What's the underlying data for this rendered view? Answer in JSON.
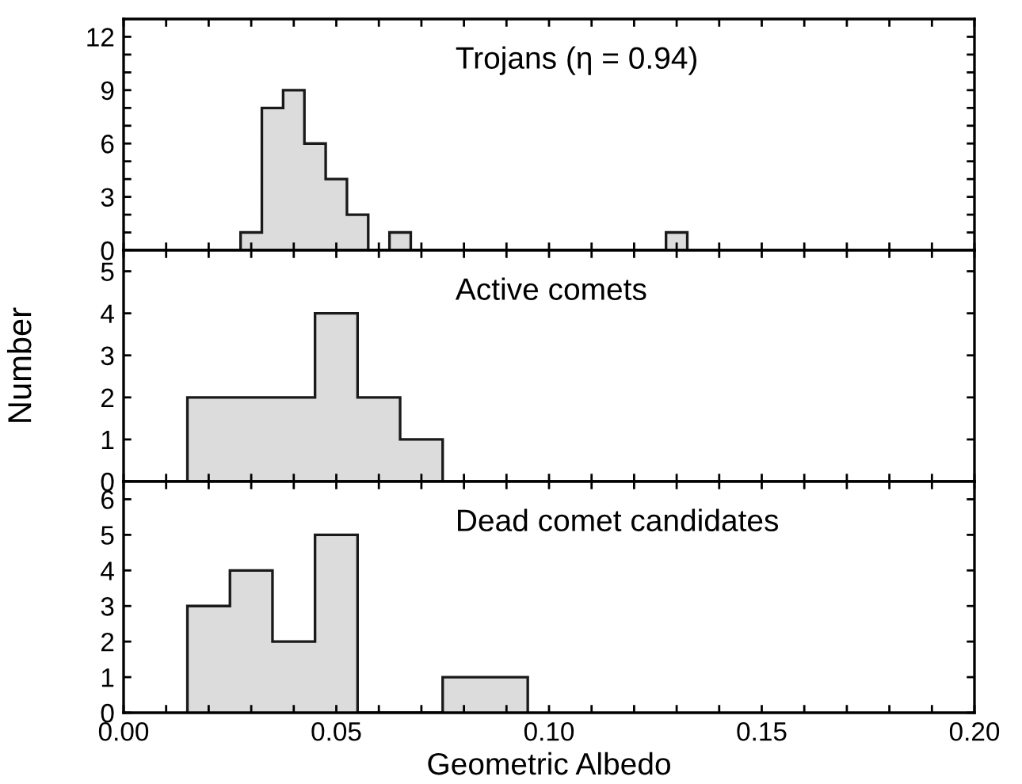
{
  "chart_data": [
    {
      "type": "histogram",
      "annotations": [
        "Trojans (η = 0.94)"
      ],
      "bins": [
        0.0275,
        0.0325,
        0.0375,
        0.0425,
        0.0475,
        0.0525,
        0.0575,
        0.0625,
        0.0675,
        0.0725,
        0.0775,
        0.0825,
        0.0875,
        0.0925,
        0.0975,
        0.1025,
        0.1075,
        0.1125,
        0.1175,
        0.1225,
        0.1275,
        0.1325
      ],
      "values": [
        1,
        8,
        9,
        6,
        4,
        2,
        0,
        1,
        0,
        0,
        0,
        0,
        0,
        0,
        0,
        0,
        0,
        0,
        0,
        0,
        1
      ],
      "color": "#dcdcdc",
      "xlim": [
        0,
        0.2
      ],
      "xticks": [
        {
          "value": 0,
          "label": null
        },
        {
          "value": 0.01,
          "label": null
        },
        {
          "value": 0.02,
          "label": null
        },
        {
          "value": 0.03,
          "label": null
        },
        {
          "value": 0.04,
          "label": null
        },
        {
          "value": 0.05,
          "label": null
        },
        {
          "value": 0.06,
          "label": null
        },
        {
          "value": 0.07,
          "label": null
        },
        {
          "value": 0.08,
          "label": null
        },
        {
          "value": 0.09,
          "label": null
        },
        {
          "value": 0.1,
          "label": null
        },
        {
          "value": 0.11,
          "label": null
        },
        {
          "value": 0.12,
          "label": null
        },
        {
          "value": 0.13,
          "label": null
        },
        {
          "value": 0.14,
          "label": null
        },
        {
          "value": 0.15,
          "label": null
        },
        {
          "value": 0.16,
          "label": null
        },
        {
          "value": 0.17,
          "label": null
        },
        {
          "value": 0.18,
          "label": null
        },
        {
          "value": 0.19,
          "label": null
        },
        {
          "value": 0.2,
          "label": null
        }
      ],
      "ylim": [
        0,
        13
      ],
      "yticks": [
        0,
        {
          "value": 1,
          "label": null
        },
        {
          "value": 2,
          "label": null
        },
        3,
        {
          "value": 4,
          "label": null
        },
        {
          "value": 5,
          "label": null
        },
        6,
        {
          "value": 7,
          "label": null
        },
        {
          "value": 8,
          "label": null
        },
        9,
        {
          "value": 10,
          "label": null
        },
        {
          "value": 11,
          "label": null
        },
        12
      ],
      "tick_labels": "y",
      "grid": false
    },
    {
      "type": "histogram",
      "annotations": [
        "Active comets"
      ],
      "ylabel": "Number",
      "bins": [
        0.015,
        0.045,
        0.055,
        0.065,
        0.075
      ],
      "values": [
        2,
        4,
        2,
        1
      ],
      "color": "#dcdcdc",
      "xlim": [
        0,
        0.2
      ],
      "xticks": [
        {
          "value": 0,
          "label": null
        },
        {
          "value": 0.01,
          "label": null
        },
        {
          "value": 0.02,
          "label": null
        },
        {
          "value": 0.03,
          "label": null
        },
        {
          "value": 0.04,
          "label": null
        },
        {
          "value": 0.05,
          "label": null
        },
        {
          "value": 0.06,
          "label": null
        },
        {
          "value": 0.07,
          "label": null
        },
        {
          "value": 0.08,
          "label": null
        },
        {
          "value": 0.09,
          "label": null
        },
        {
          "value": 0.1,
          "label": null
        },
        {
          "value": 0.11,
          "label": null
        },
        {
          "value": 0.12,
          "label": null
        },
        {
          "value": 0.13,
          "label": null
        },
        {
          "value": 0.14,
          "label": null
        },
        {
          "value": 0.15,
          "label": null
        },
        {
          "value": 0.16,
          "label": null
        },
        {
          "value": 0.17,
          "label": null
        },
        {
          "value": 0.18,
          "label": null
        },
        {
          "value": 0.19,
          "label": null
        },
        {
          "value": 0.2,
          "label": null
        }
      ],
      "ylim": [
        0,
        5.5
      ],
      "yticks": [
        0,
        1,
        2,
        3,
        4,
        5
      ],
      "tick_labels": "y",
      "grid": false
    },
    {
      "type": "histogram",
      "annotations": [
        "Dead comet candidates"
      ],
      "xlabel": "Geometric Albedo",
      "bins": [
        0.015,
        0.025,
        0.035,
        0.045,
        0.055,
        0.075,
        0.095
      ],
      "values": [
        3,
        4,
        2,
        5,
        0,
        1
      ],
      "color": "#dcdcdc",
      "xlim": [
        0,
        0.2
      ],
      "xticks": [
        {
          "value": 0,
          "label": "0.00"
        },
        {
          "value": 0.01,
          "label": null
        },
        {
          "value": 0.02,
          "label": null
        },
        {
          "value": 0.03,
          "label": null
        },
        {
          "value": 0.04,
          "label": null
        },
        {
          "value": 0.05,
          "label": "0.05"
        },
        {
          "value": 0.06,
          "label": null
        },
        {
          "value": 0.07,
          "label": null
        },
        {
          "value": 0.08,
          "label": null
        },
        {
          "value": 0.09,
          "label": null
        },
        {
          "value": 0.1,
          "label": "0.10"
        },
        {
          "value": 0.11,
          "label": null
        },
        {
          "value": 0.12,
          "label": null
        },
        {
          "value": 0.13,
          "label": null
        },
        {
          "value": 0.14,
          "label": null
        },
        {
          "value": 0.15,
          "label": "0.15"
        },
        {
          "value": 0.16,
          "label": null
        },
        {
          "value": 0.17,
          "label": null
        },
        {
          "value": 0.18,
          "label": null
        },
        {
          "value": 0.19,
          "label": null
        },
        {
          "value": 0.2,
          "label": "0.20"
        }
      ],
      "ylim": [
        0,
        6.5
      ],
      "yticks": [
        0,
        1,
        2,
        3,
        4,
        5,
        6
      ],
      "grid": false
    }
  ]
}
